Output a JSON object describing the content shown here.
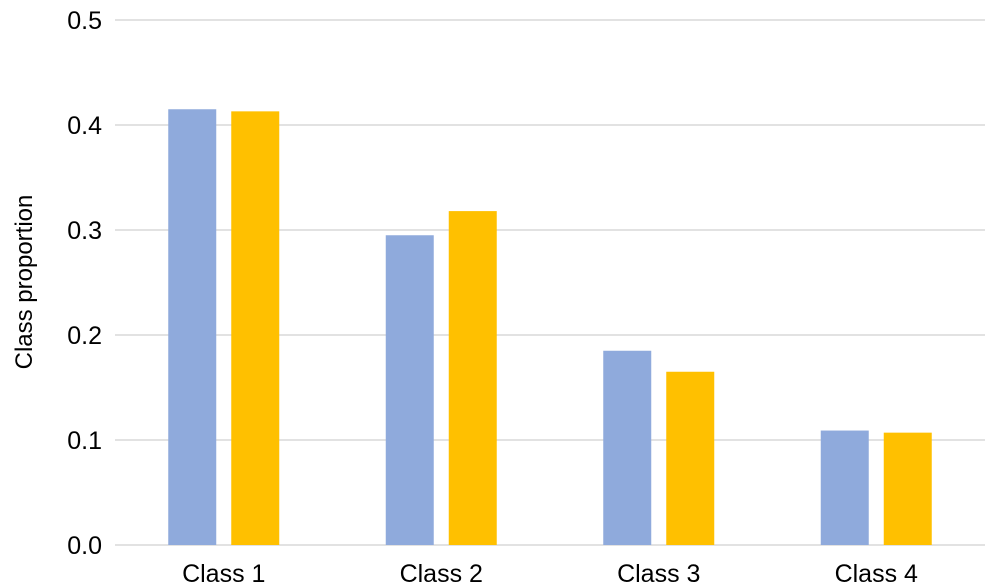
{
  "chart_data": {
    "type": "bar",
    "title": "",
    "xlabel": "",
    "ylabel": "Class proportion",
    "categories": [
      "Class 1",
      "Class 2",
      "Class 3",
      "Class 4"
    ],
    "ylim": [
      0,
      0.5
    ],
    "yticks": [
      "0.0",
      "0.1",
      "0.2",
      "0.3",
      "0.4",
      "0.5"
    ],
    "grid": true,
    "legend": "none",
    "series": [
      {
        "color": "#8FAADC",
        "values": [
          0.415,
          0.295,
          0.185,
          0.109
        ]
      },
      {
        "color": "#FFC000",
        "values": [
          0.413,
          0.318,
          0.165,
          0.107
        ]
      }
    ]
  }
}
